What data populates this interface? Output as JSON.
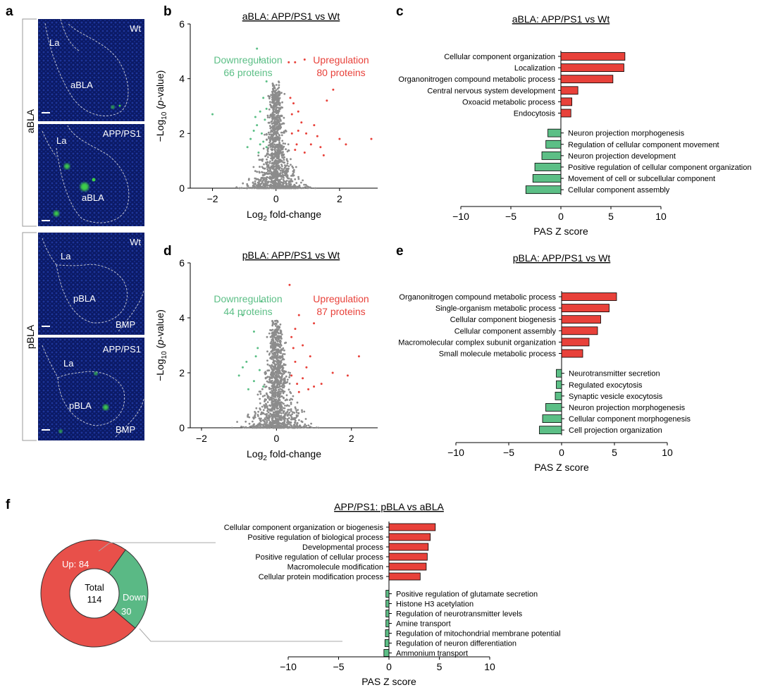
{
  "panel_letters": {
    "a": "a",
    "b": "b",
    "c": "c",
    "d": "d",
    "e": "e",
    "f": "f"
  },
  "colors": {
    "up": "#e8413a",
    "down": "#5cbf86",
    "grey": "#8c8c8c",
    "pie_up": "#e8504a",
    "pie_down": "#5ab985",
    "micro_bg": "#0c1d6e"
  },
  "panel_a": {
    "rows": [
      {
        "label": "aBLA",
        "images": [
          {
            "genotype": "Wt",
            "regions": [
              "La",
              "aBLA"
            ]
          },
          {
            "genotype": "APP/PS1",
            "regions": [
              "La",
              "aBLA"
            ]
          }
        ]
      },
      {
        "label": "pBLA",
        "images": [
          {
            "genotype": "Wt",
            "regions": [
              "La",
              "pBLA",
              "BMP"
            ]
          },
          {
            "genotype": "APP/PS1",
            "regions": [
              "La",
              "pBLA",
              "BMP"
            ]
          }
        ]
      }
    ]
  },
  "chart_data": [
    {
      "id": "b",
      "type": "scatter",
      "title": "aBLA: APP/PS1 vs Wt",
      "xlabel": "Log2 fold-change",
      "ylabel": "−Log10 (p-value)",
      "xlim": [
        -2.7,
        3.2
      ],
      "ylim": [
        0,
        6
      ],
      "xticks": [
        -2,
        0,
        2
      ],
      "yticks": [
        0,
        2,
        4,
        6
      ],
      "down_label": "Downregulation",
      "down_count": "66 proteins",
      "up_label": "Upregulation",
      "up_count": "80 proteins",
      "up_points": [
        [
          0.4,
          4.6
        ],
        [
          0.6,
          4.6
        ],
        [
          0.9,
          4.7
        ],
        [
          1.8,
          3.6
        ],
        [
          1.6,
          3.2
        ],
        [
          1.5,
          1.2
        ],
        [
          2.0,
          1.8
        ],
        [
          2.2,
          1.6
        ],
        [
          3.0,
          1.8
        ],
        [
          1.1,
          1.6
        ],
        [
          1.3,
          1.9
        ],
        [
          0.8,
          2.4
        ],
        [
          0.7,
          2.1
        ],
        [
          0.5,
          2.7
        ],
        [
          0.6,
          1.4
        ],
        [
          0.9,
          1.3
        ],
        [
          1.2,
          2.3
        ],
        [
          0.45,
          3.3
        ],
        [
          0.55,
          3.1
        ],
        [
          0.5,
          2.0
        ],
        [
          0.7,
          2.8
        ],
        [
          0.95,
          2.0
        ],
        [
          1.4,
          1.5
        ],
        [
          0.65,
          1.6
        ]
      ],
      "down_points": [
        [
          -0.6,
          5.1
        ],
        [
          -0.5,
          4.7
        ],
        [
          -2.0,
          2.7
        ],
        [
          -0.3,
          3.9
        ],
        [
          -0.4,
          3.3
        ],
        [
          -0.5,
          2.8
        ],
        [
          -0.6,
          2.3
        ],
        [
          -0.7,
          2.1
        ],
        [
          -0.8,
          1.8
        ],
        [
          -0.5,
          1.6
        ],
        [
          -0.35,
          2.5
        ],
        [
          -0.45,
          2.0
        ],
        [
          -0.55,
          1.3
        ],
        [
          -0.9,
          1.5
        ],
        [
          -0.4,
          1.7
        ],
        [
          -0.3,
          2.9
        ],
        [
          -0.65,
          2.6
        ],
        [
          -0.3,
          1.5
        ]
      ]
    },
    {
      "id": "c",
      "type": "bar",
      "orientation": "horizontal",
      "title": "aBLA: APP/PS1 vs Wt",
      "xlabel": "PAS Z score",
      "xlim": [
        -10,
        10
      ],
      "xticks": [
        -10,
        -5,
        0,
        5,
        10
      ],
      "categories": [
        "Cellular component organization",
        "Localization",
        "Organonitrogen compound metabolic process",
        "Central nervous system development",
        "Oxoacid metabolic process",
        "Endocytosis",
        "Neuron projection morphogenesis",
        "Regulation of cellular component movement",
        "Neuron projection development",
        "Positive regulation of cellular component organization",
        "Movement of cell or subcellular component",
        "Cellular component assembly"
      ],
      "values": [
        6.4,
        6.3,
        5.2,
        1.7,
        1.1,
        1.0,
        -1.3,
        -1.5,
        -1.9,
        -2.6,
        -2.8,
        -3.5
      ]
    },
    {
      "id": "d",
      "type": "scatter",
      "title": "pBLA: APP/PS1 vs Wt",
      "xlabel": "Log2 fold-change",
      "ylabel": "−Log10 (p-value)",
      "xlim": [
        -2.3,
        2.7
      ],
      "ylim": [
        0,
        6
      ],
      "xticks": [
        -2,
        0,
        2
      ],
      "yticks": [
        0,
        2,
        4,
        6
      ],
      "down_label": "Downregulation",
      "down_count": "44 proteins",
      "up_label": "Upregulation",
      "up_count": "87 proteins",
      "up_points": [
        [
          0.35,
          5.2
        ],
        [
          0.6,
          4.1
        ],
        [
          1.0,
          3.8
        ],
        [
          2.2,
          2.6
        ],
        [
          1.5,
          2.0
        ],
        [
          1.0,
          1.5
        ],
        [
          0.7,
          1.8
        ],
        [
          0.4,
          3.3
        ],
        [
          0.5,
          2.4
        ],
        [
          0.8,
          2.2
        ],
        [
          0.6,
          1.3
        ],
        [
          1.2,
          1.6
        ],
        [
          0.45,
          2.9
        ],
        [
          0.9,
          2.6
        ],
        [
          0.55,
          1.6
        ],
        [
          1.9,
          1.9
        ],
        [
          0.7,
          3.0
        ],
        [
          0.4,
          1.9
        ],
        [
          0.85,
          1.4
        ],
        [
          0.5,
          3.6
        ]
      ],
      "down_points": [
        [
          -0.9,
          4.1
        ],
        [
          -0.6,
          3.5
        ],
        [
          -0.4,
          4.6
        ],
        [
          -0.5,
          2.9
        ],
        [
          -0.8,
          2.4
        ],
        [
          -1.0,
          1.9
        ],
        [
          -0.45,
          2.1
        ],
        [
          -0.6,
          1.7
        ],
        [
          -0.9,
          2.2
        ],
        [
          -0.35,
          1.5
        ],
        [
          -0.55,
          2.6
        ],
        [
          -0.75,
          1.4
        ]
      ]
    },
    {
      "id": "e",
      "type": "bar",
      "orientation": "horizontal",
      "title": "pBLA: APP/PS1 vs Wt",
      "xlabel": "PAS Z score",
      "xlim": [
        -10,
        10
      ],
      "xticks": [
        -10,
        -5,
        0,
        5,
        10
      ],
      "categories": [
        "Organonitrogen compound metabolic process",
        "Single-organism metabolic process",
        "Cellular component biogenesis",
        "Cellular component assembly",
        "Macromolecular complex subunit organization",
        "Small molecule metabolic process",
        "Neurotransmitter secretion",
        "Regulated exocytosis",
        "Synaptic vesicle exocytosis",
        "Neuron projection morphogenesis",
        "Cellular component morphogenesis",
        "Cell projection organization"
      ],
      "values": [
        5.2,
        4.5,
        3.7,
        3.4,
        2.6,
        2.0,
        -0.5,
        -0.5,
        -0.6,
        -1.5,
        -1.8,
        -2.1
      ]
    },
    {
      "id": "f_pie",
      "type": "pie",
      "center_label": "Total",
      "center_value": "114",
      "slices": [
        {
          "label": "Up",
          "text": "Up: 84",
          "value": 84
        },
        {
          "label": "Down",
          "text": "Down",
          "value_text": "30",
          "value": 30
        }
      ]
    },
    {
      "id": "f_bar",
      "type": "bar",
      "orientation": "horizontal",
      "title": "APP/PS1: pBLA vs aBLA",
      "xlabel": "PAS Z score",
      "xlim": [
        -10,
        10
      ],
      "xticks": [
        -10,
        -5,
        0,
        5,
        10
      ],
      "categories": [
        "Cellular component organization or biogenesis",
        "Positive regulation of biological process",
        "Developmental process",
        "Positive regulation of cellular process",
        "Macromolecule modification",
        "Cellular protein modification process",
        "Positive regulation of glutamate secretion",
        "Histone H3 acetylation",
        "Regulation of neurotransmitter levels",
        "Amine transport",
        "Regulation of mitochondrial membrane potential",
        "Regulation of neuron differentiation",
        "Ammonium transport"
      ],
      "values": [
        4.6,
        4.1,
        3.9,
        3.8,
        3.7,
        3.1,
        -0.3,
        -0.3,
        -0.3,
        -0.3,
        -0.35,
        -0.4,
        -0.5
      ]
    }
  ]
}
